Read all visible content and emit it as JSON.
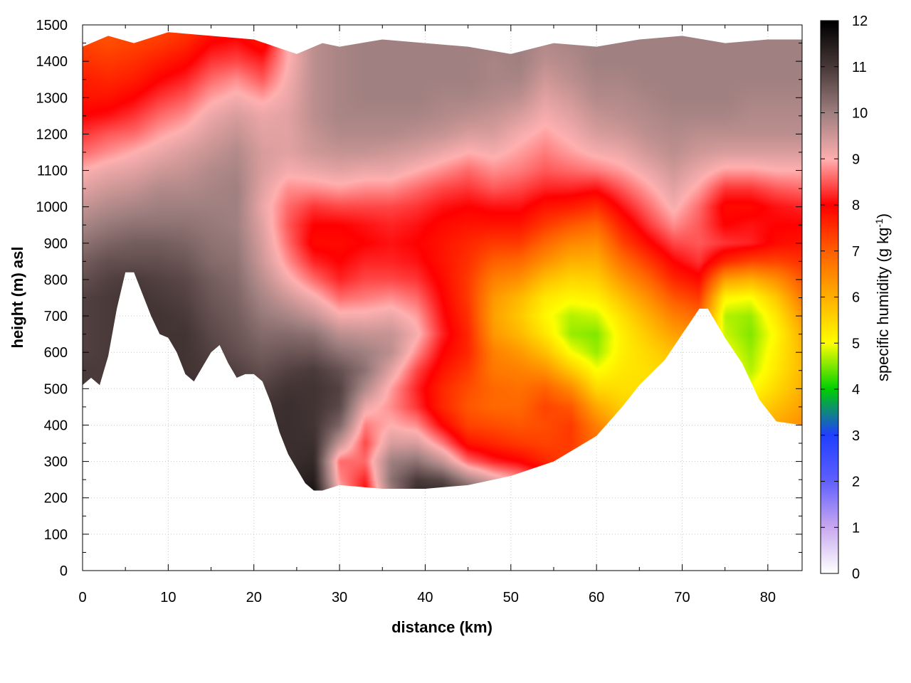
{
  "chart_data": {
    "type": "heatmap",
    "title": "",
    "xlabel": "distance (km)",
    "ylabel": "height (m) asl",
    "xlim": [
      0,
      84
    ],
    "ylim": [
      0,
      1500
    ],
    "x_ticks": [
      0,
      10,
      20,
      30,
      40,
      50,
      60,
      70,
      80
    ],
    "y_ticks": [
      0,
      100,
      200,
      300,
      400,
      500,
      600,
      700,
      800,
      900,
      1000,
      1100,
      1200,
      1300,
      1400,
      1500
    ],
    "grid": true,
    "colorbar": {
      "label_main": "specific humidity (g kg",
      "label_sup": "-1",
      "label_close": ")",
      "range": [
        0,
        12
      ],
      "ticks": [
        0,
        1,
        2,
        3,
        4,
        5,
        6,
        7,
        8,
        9,
        10,
        11,
        12
      ],
      "palette": [
        [
          0,
          "#ffffff"
        ],
        [
          1,
          "#c8a8f0"
        ],
        [
          2,
          "#6060ff"
        ],
        [
          3,
          "#2040ff"
        ],
        [
          4,
          "#00d000"
        ],
        [
          5,
          "#ffff00"
        ],
        [
          6,
          "#ffb000"
        ],
        [
          7,
          "#ff6000"
        ],
        [
          8,
          "#ff0000"
        ],
        [
          9,
          "#ffb0b0"
        ],
        [
          10,
          "#a08080"
        ],
        [
          11,
          "#4a3a3a"
        ],
        [
          12,
          "#000000"
        ]
      ]
    },
    "terrain_m": [
      [
        0,
        510
      ],
      [
        1,
        530
      ],
      [
        2,
        510
      ],
      [
        3,
        590
      ],
      [
        4,
        720
      ],
      [
        5,
        820
      ],
      [
        6,
        820
      ],
      [
        7,
        760
      ],
      [
        8,
        700
      ],
      [
        9,
        650
      ],
      [
        10,
        640
      ],
      [
        11,
        600
      ],
      [
        12,
        540
      ],
      [
        13,
        520
      ],
      [
        14,
        560
      ],
      [
        15,
        600
      ],
      [
        16,
        620
      ],
      [
        17,
        570
      ],
      [
        18,
        530
      ],
      [
        19,
        540
      ],
      [
        20,
        540
      ],
      [
        21,
        520
      ],
      [
        22,
        460
      ],
      [
        23,
        380
      ],
      [
        24,
        320
      ],
      [
        25,
        280
      ],
      [
        26,
        240
      ],
      [
        27,
        220
      ],
      [
        28,
        220
      ],
      [
        30,
        235
      ],
      [
        35,
        225
      ],
      [
        40,
        225
      ],
      [
        45,
        235
      ],
      [
        50,
        260
      ],
      [
        55,
        300
      ],
      [
        60,
        370
      ],
      [
        63,
        450
      ],
      [
        65,
        510
      ],
      [
        68,
        580
      ],
      [
        70,
        650
      ],
      [
        72,
        720
      ],
      [
        73,
        720
      ],
      [
        75,
        640
      ],
      [
        77,
        570
      ],
      [
        79,
        470
      ],
      [
        81,
        410
      ],
      [
        84,
        400
      ]
    ],
    "top_m": [
      [
        0,
        1440
      ],
      [
        3,
        1470
      ],
      [
        6,
        1450
      ],
      [
        10,
        1480
      ],
      [
        15,
        1470
      ],
      [
        20,
        1460
      ],
      [
        25,
        1420
      ],
      [
        28,
        1450
      ],
      [
        30,
        1440
      ],
      [
        35,
        1460
      ],
      [
        40,
        1450
      ],
      [
        45,
        1440
      ],
      [
        50,
        1420
      ],
      [
        55,
        1450
      ],
      [
        60,
        1440
      ],
      [
        65,
        1460
      ],
      [
        70,
        1470
      ],
      [
        75,
        1450
      ],
      [
        80,
        1460
      ],
      [
        84,
        1460
      ]
    ],
    "humidity_field": {
      "x_km": [
        0,
        3,
        6,
        9,
        12,
        15,
        18,
        21,
        24,
        27,
        30,
        33,
        36,
        39,
        42,
        45,
        48,
        51,
        54,
        57,
        60,
        63,
        66,
        69,
        72,
        75,
        78,
        81,
        84
      ],
      "z_m": [
        200,
        250,
        300,
        350,
        400,
        450,
        500,
        550,
        600,
        650,
        700,
        750,
        800,
        850,
        900,
        950,
        1000,
        1050,
        1100,
        1150,
        1200,
        1250,
        1300,
        1350,
        1400,
        1450,
        1500
      ],
      "q_g_per_kg": [
        [
          11.2,
          11.2,
          11.2,
          11.2,
          11.1,
          11.0,
          11.0,
          11.0,
          10.9,
          10.9,
          10.9,
          10.9,
          10.7,
          10.5,
          10.2,
          9.9,
          9.6,
          9.3,
          9.0,
          8.6,
          8.3,
          8.0,
          7.8,
          7.7,
          7.5,
          7.3,
          7.2
        ],
        [
          11.2,
          11.2,
          11.2,
          11.2,
          11.1,
          11.0,
          11.0,
          11.0,
          11.0,
          11.0,
          11.0,
          11.0,
          10.9,
          10.7,
          10.4,
          10.1,
          9.8,
          9.5,
          9.2,
          8.8,
          8.5,
          8.1,
          7.8,
          7.6,
          7.4,
          7.2,
          7.1
        ],
        [
          11.3,
          11.3,
          11.3,
          11.3,
          11.3,
          11.2,
          11.1,
          11.1,
          11.1,
          11.1,
          11.1,
          11.1,
          11.0,
          10.7,
          10.5,
          10.2,
          9.9,
          9.6,
          9.3,
          9.0,
          8.6,
          8.3,
          8.0,
          7.7,
          7.5,
          7.3,
          7.2
        ],
        [
          11.3,
          11.3,
          11.3,
          11.3,
          11.3,
          11.3,
          11.2,
          11.1,
          11.1,
          11.1,
          11.1,
          11.0,
          10.9,
          10.7,
          10.5,
          10.2,
          10.0,
          9.8,
          9.5,
          9.2,
          8.9,
          8.6,
          8.3,
          8.0,
          7.7,
          7.4,
          7.2
        ],
        [
          11.3,
          11.3,
          11.3,
          11.3,
          11.3,
          11.3,
          11.2,
          11.1,
          11.1,
          11.1,
          11.0,
          10.9,
          10.8,
          10.6,
          10.4,
          10.2,
          10.0,
          9.8,
          9.6,
          9.4,
          9.1,
          8.8,
          8.5,
          8.2,
          7.9,
          7.6,
          7.4
        ],
        [
          11.3,
          11.3,
          11.3,
          11.3,
          11.3,
          11.2,
          11.1,
          11.0,
          10.9,
          10.8,
          10.7,
          10.6,
          10.5,
          10.3,
          10.2,
          10.1,
          10.0,
          9.9,
          9.8,
          9.6,
          9.4,
          9.2,
          8.9,
          8.6,
          8.3,
          8.0,
          7.7
        ],
        [
          11.3,
          11.3,
          11.3,
          11.3,
          11.2,
          11.1,
          11.0,
          10.9,
          10.7,
          10.6,
          10.5,
          10.4,
          10.3,
          10.2,
          10.1,
          10.0,
          10.0,
          10.0,
          9.9,
          9.8,
          9.6,
          9.4,
          9.1,
          8.8,
          8.4,
          8.1,
          7.8
        ],
        [
          11.3,
          11.3,
          11.2,
          11.2,
          11.2,
          11.1,
          10.9,
          10.7,
          10.5,
          10.3,
          10.1,
          9.9,
          9.7,
          9.5,
          9.4,
          9.3,
          9.2,
          9.3,
          9.4,
          9.4,
          9.3,
          9.2,
          8.9,
          8.5,
          8.2,
          7.8,
          7.5
        ],
        [
          11.3,
          11.3,
          11.2,
          11.2,
          11.2,
          11.2,
          11.1,
          10.9,
          10.6,
          10.3,
          9.9,
          9.5,
          9.1,
          8.8,
          8.6,
          8.5,
          8.6,
          8.8,
          9.1,
          9.3,
          9.3,
          9.3,
          9.2,
          9.1,
          9.0,
          9.0,
          9.0
        ],
        [
          11.8,
          11.5,
          11.3,
          11.2,
          11.1,
          11.1,
          11.1,
          11.0,
          10.6,
          10.2,
          9.6,
          9.1,
          8.6,
          8.2,
          7.9,
          8.0,
          8.3,
          8.8,
          9.2,
          9.5,
          9.6,
          9.7,
          9.7,
          9.7,
          9.7,
          9.7,
          9.7
        ],
        [
          9.2,
          8.8,
          8.6,
          9.6,
          10.4,
          10.8,
          10.9,
          10.7,
          10.2,
          9.7,
          9.1,
          8.6,
          8.2,
          8.0,
          7.9,
          8.0,
          8.4,
          8.9,
          9.3,
          9.6,
          9.8,
          9.9,
          9.9,
          9.9,
          9.9,
          9.9,
          9.9
        ],
        [
          7.9,
          8.2,
          8.6,
          8.4,
          8.7,
          9.2,
          9.8,
          10.2,
          10.0,
          9.6,
          9.1,
          8.7,
          8.4,
          8.2,
          8.0,
          8.1,
          8.4,
          8.8,
          9.2,
          9.6,
          9.8,
          9.9,
          10.0,
          10.0,
          10.0,
          10.0,
          10.0
        ],
        [
          9.9,
          10.2,
          10.0,
          9.4,
          9.0,
          8.8,
          8.9,
          9.3,
          9.7,
          9.6,
          9.2,
          8.8,
          8.4,
          8.2,
          8.1,
          8.2,
          8.4,
          8.8,
          9.2,
          9.5,
          9.8,
          9.9,
          10.0,
          10.0,
          10.0,
          10.0,
          10.0
        ],
        [
          11.4,
          11.0,
          10.2,
          9.4,
          8.8,
          8.3,
          8.2,
          8.4,
          8.8,
          9.1,
          8.9,
          8.6,
          8.3,
          8.1,
          8.0,
          8.1,
          8.3,
          8.6,
          9.0,
          9.4,
          9.7,
          9.9,
          10.0,
          10.0,
          10.0,
          10.0,
          10.0
        ],
        [
          11.5,
          10.8,
          9.6,
          8.7,
          8.0,
          7.6,
          7.6,
          7.8,
          8.0,
          8.2,
          8.1,
          8.0,
          7.9,
          7.8,
          7.8,
          7.9,
          8.1,
          8.4,
          8.8,
          9.2,
          9.6,
          9.8,
          9.9,
          10.0,
          10.0,
          10.0,
          10.0
        ],
        [
          11.1,
          9.9,
          8.6,
          7.8,
          7.3,
          7.1,
          7.2,
          7.4,
          7.6,
          7.6,
          7.5,
          7.4,
          7.4,
          7.5,
          7.6,
          7.8,
          8.0,
          8.3,
          8.6,
          9.0,
          9.4,
          9.7,
          9.9,
          10.0,
          10.0,
          10.0,
          10.0
        ],
        [
          10.5,
          9.3,
          8.2,
          7.6,
          7.2,
          6.9,
          6.9,
          6.7,
          6.6,
          6.3,
          6.2,
          6.3,
          6.6,
          7.0,
          7.4,
          7.8,
          8.1,
          8.5,
          8.8,
          9.1,
          9.4,
          9.6,
          9.8,
          9.9,
          9.9,
          10.0,
          10.0
        ],
        [
          10.2,
          8.9,
          8.0,
          7.4,
          7.1,
          6.9,
          6.8,
          6.6,
          6.3,
          5.9,
          5.7,
          5.9,
          6.4,
          6.9,
          7.4,
          7.8,
          8.1,
          8.4,
          8.7,
          8.9,
          9.1,
          9.4,
          9.7,
          9.9,
          10.0,
          10.0,
          10.0
        ],
        [
          10.0,
          8.4,
          7.6,
          7.3,
          7.2,
          7.3,
          7.0,
          6.4,
          5.8,
          5.3,
          5.1,
          5.3,
          5.8,
          6.4,
          6.9,
          7.4,
          7.8,
          8.2,
          8.5,
          8.7,
          8.9,
          9.1,
          9.3,
          9.5,
          9.7,
          9.8,
          9.9
        ],
        [
          9.7,
          7.7,
          7.3,
          7.4,
          7.4,
          7.1,
          6.5,
          5.7,
          5.0,
          4.6,
          4.7,
          5.1,
          5.5,
          6.0,
          6.5,
          7.1,
          7.7,
          8.2,
          8.6,
          8.9,
          9.1,
          9.3,
          9.5,
          9.7,
          9.8,
          9.9,
          9.9
        ],
        [
          9.5,
          7.2,
          6.9,
          6.8,
          6.6,
          6.1,
          5.5,
          5.0,
          4.6,
          4.5,
          4.8,
          5.2,
          5.6,
          6.0,
          6.4,
          6.9,
          7.5,
          8.1,
          8.7,
          9.1,
          9.4,
          9.6,
          9.8,
          9.9,
          10.0,
          10.0,
          10.0
        ],
        [
          9.5,
          7.3,
          6.5,
          6.2,
          5.9,
          5.6,
          5.4,
          5.3,
          5.2,
          5.2,
          5.4,
          5.8,
          6.3,
          6.8,
          7.3,
          7.7,
          8.1,
          8.5,
          8.9,
          9.2,
          9.5,
          9.7,
          9.8,
          9.9,
          10.0,
          10.0,
          10.0
        ],
        [
          9.5,
          7.4,
          6.2,
          5.9,
          5.7,
          5.5,
          5.4,
          5.4,
          5.5,
          5.7,
          6.0,
          6.4,
          6.9,
          7.4,
          7.9,
          8.3,
          8.6,
          8.9,
          9.2,
          9.5,
          9.7,
          9.8,
          9.9,
          10.0,
          10.0,
          10.0,
          10.0
        ],
        [
          9.5,
          7.5,
          6.3,
          5.8,
          5.6,
          5.5,
          5.5,
          5.6,
          5.8,
          6.2,
          6.6,
          7.1,
          7.6,
          8.0,
          8.4,
          8.8,
          9.1,
          9.3,
          9.5,
          9.7,
          9.8,
          9.9,
          10.0,
          10.0,
          10.0,
          10.0,
          10.0
        ],
        [
          9.5,
          7.5,
          6.4,
          5.9,
          5.6,
          5.5,
          5.5,
          5.6,
          6.0,
          6.4,
          6.9,
          7.4,
          7.9,
          8.3,
          8.5,
          8.5,
          8.6,
          8.9,
          9.2,
          9.5,
          9.7,
          9.9,
          10.0,
          10.0,
          10.0,
          10.0,
          10.0
        ],
        [
          9.5,
          7.5,
          6.5,
          6.0,
          5.7,
          5.5,
          5.4,
          5.2,
          5.0,
          4.8,
          4.7,
          5.1,
          6.2,
          7.6,
          8.3,
          8.0,
          7.9,
          8.3,
          8.9,
          9.4,
          9.7,
          9.9,
          10.0,
          10.0,
          10.0,
          10.0,
          10.0
        ],
        [
          9.5,
          7.5,
          6.6,
          6.2,
          5.8,
          5.4,
          5.0,
          4.7,
          4.6,
          4.5,
          4.6,
          5.0,
          6.0,
          7.3,
          8.2,
          8.1,
          7.9,
          8.3,
          8.9,
          9.4,
          9.7,
          9.8,
          9.9,
          10.0,
          10.0,
          10.0,
          10.0
        ],
        [
          9.5,
          7.5,
          6.8,
          6.5,
          6.1,
          5.8,
          5.5,
          5.3,
          5.2,
          5.1,
          5.3,
          5.7,
          6.4,
          7.3,
          7.9,
          8.0,
          8.1,
          8.5,
          9.0,
          9.4,
          9.7,
          9.8,
          9.9,
          10.0,
          10.0,
          10.0,
          10.0
        ],
        [
          9.5,
          7.5,
          7.0,
          6.7,
          6.4,
          6.2,
          6.0,
          5.9,
          5.9,
          6.0,
          6.3,
          6.7,
          7.1,
          7.5,
          7.8,
          8.0,
          8.2,
          8.6,
          9.0,
          9.4,
          9.7,
          9.8,
          9.9,
          10.0,
          10.0,
          10.0,
          10.0
        ]
      ]
    }
  }
}
